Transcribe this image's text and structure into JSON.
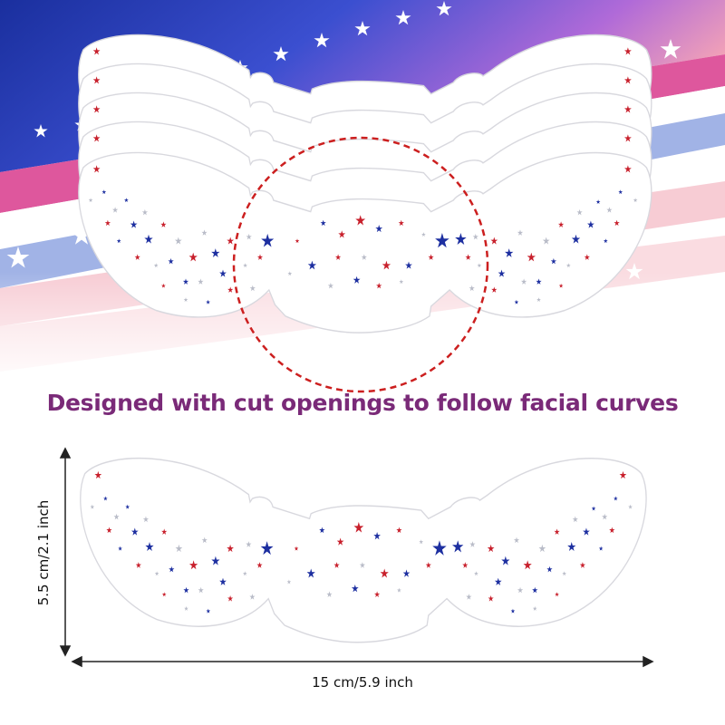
{
  "caption": "Designed with cut openings to follow facial curves",
  "dimensions": {
    "height": "5.5 cm/2.1 inch",
    "width": "15 cm/5.9 inch"
  },
  "colors": {
    "caption": "#7a2a78",
    "star_red": "#c8202c",
    "star_blue": "#1d2fa0",
    "star_silver": "#b9bcc8",
    "highlight_circle": "#cc1f1f",
    "flag_blue": "#1e3fa8",
    "flag_red": "#e0263a"
  },
  "icons": [
    "star-icon",
    "dashed-circle-highlight",
    "dimension-arrow"
  ]
}
